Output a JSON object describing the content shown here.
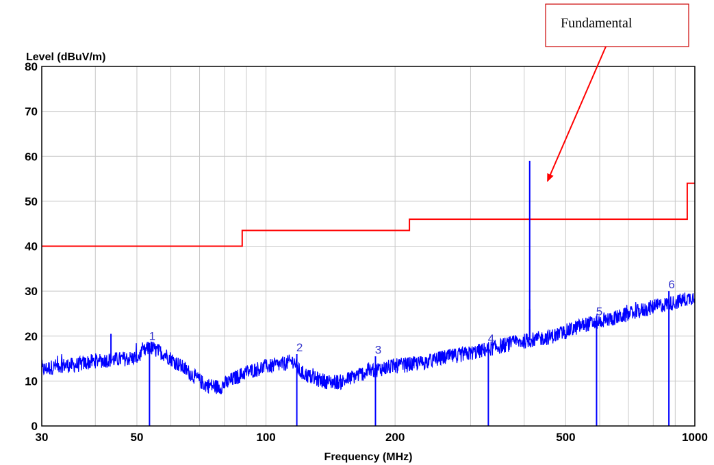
{
  "chart_data": {
    "type": "line",
    "ylabel": "Level (dBuV/m)",
    "xlabel": "Frequency (MHz)",
    "x_scale": "log",
    "xlim": [
      30,
      1000
    ],
    "ylim": [
      0,
      80
    ],
    "grid": true,
    "x_ticks": [
      {
        "value": 30,
        "label": "30"
      },
      {
        "value": 50,
        "label": "50"
      },
      {
        "value": 100,
        "label": "100"
      },
      {
        "value": 200,
        "label": "200"
      },
      {
        "value": 500,
        "label": "500"
      },
      {
        "value": 1000,
        "label": "1000"
      }
    ],
    "y_ticks": [
      0,
      10,
      20,
      30,
      40,
      50,
      60,
      70,
      80
    ],
    "series": [
      {
        "role": "measured-spectrum",
        "color": "#0000ff",
        "x": [
          30,
          33,
          36,
          40,
          45,
          50,
          53.5,
          58,
          65,
          72,
          78,
          84,
          90,
          100,
          110,
          116,
          120,
          130,
          140,
          150,
          165,
          180,
          200,
          230,
          260,
          300,
          340,
          380,
          420,
          460,
          500,
          550,
          600,
          700,
          800,
          900,
          1000
        ],
        "y": [
          12.5,
          13.5,
          13.5,
          14.5,
          14.8,
          15.2,
          17.5,
          16,
          12.5,
          9.2,
          8.6,
          10.5,
          12,
          13.2,
          13.8,
          14.5,
          12,
          10.5,
          9.8,
          9.8,
          11.5,
          12.5,
          13.3,
          14,
          15.2,
          16.2,
          17.4,
          18.5,
          19.2,
          19.8,
          21,
          22.5,
          23.2,
          24.8,
          26.5,
          27.5,
          28.8
        ]
      },
      {
        "role": "limit-line",
        "color": "#ff0000",
        "x": [
          30,
          88,
          88,
          216,
          216,
          960,
          960,
          1000
        ],
        "y": [
          40,
          40,
          43.5,
          43.5,
          46,
          46,
          54,
          54
        ]
      }
    ],
    "spikes": [
      {
        "x": 43.5,
        "y": 20.5
      },
      {
        "x": 412,
        "y": 59
      },
      {
        "x": 412,
        "y": 26
      }
    ],
    "markers": [
      {
        "label": "1",
        "x": 53.5,
        "y": 18.5
      },
      {
        "label": "2",
        "x": 118,
        "y": 16
      },
      {
        "label": "3",
        "x": 180,
        "y": 15.5
      },
      {
        "label": "4",
        "x": 330,
        "y": 18
      },
      {
        "label": "5",
        "x": 590,
        "y": 24
      },
      {
        "label": "6",
        "x": 870,
        "y": 30
      }
    ],
    "annotations": [
      {
        "text": "Fundamental",
        "points_to": {
          "x": 412,
          "y": 57
        }
      }
    ]
  },
  "colors": {
    "spectrum": "#0000ff",
    "limit": "#ff0000",
    "grid": "#c8c8c8",
    "callout_border": "#cc0000",
    "marker_label": "#3333cc"
  }
}
